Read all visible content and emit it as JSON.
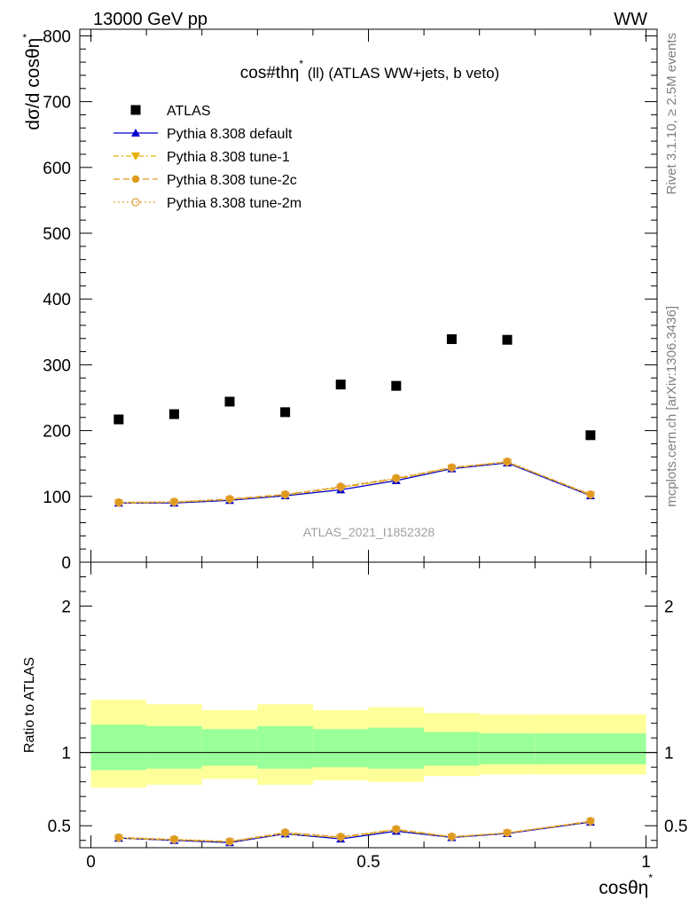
{
  "header": {
    "left": "13000 GeV pp",
    "right": "WW"
  },
  "side": {
    "rivet": "Rivet 3.1.10, ≥ 2.5M events",
    "mcplots": "mcplots.cern.ch [arXiv:1306.3436]"
  },
  "colors": {
    "atlas": "#000000",
    "default": "#0000cc",
    "tune1": "#e8b000",
    "tune2c": "#e09a1a",
    "tune2m": "#e0a040",
    "band_inner": "#99ff99",
    "band_outer": "#ffff99"
  },
  "chart_data": [
    {
      "type": "scatter",
      "title_main": "cos#thη",
      "title_sup": "*",
      "title_rest": " (ll) (ATLAS WW+jets, b veto)",
      "ylabel": "dσ/d cosθη",
      "ylabel_sup": "*",
      "watermark": "ATLAS_2021_I1852328",
      "ylim": [
        0,
        810
      ],
      "xlim": [
        -0.02,
        1.02
      ],
      "yticks": [
        0,
        100,
        200,
        300,
        400,
        500,
        600,
        700,
        800
      ],
      "ytick_labels": [
        "0",
        "100",
        "200",
        "300",
        "400",
        "500",
        "600",
        "700",
        "800"
      ],
      "x": [
        0.05,
        0.15,
        0.25,
        0.35,
        0.45,
        0.55,
        0.65,
        0.75,
        0.9
      ],
      "bin_edges": [
        0.0,
        0.1,
        0.2,
        0.3,
        0.4,
        0.5,
        0.6,
        0.7,
        0.8,
        1.0
      ],
      "legend": [
        {
          "key": "atlas",
          "label": "ATLAS"
        },
        {
          "key": "default",
          "label": "Pythia 8.308 default"
        },
        {
          "key": "tune1",
          "label": "Pythia 8.308 tune-1"
        },
        {
          "key": "tune2c",
          "label": "Pythia 8.308 tune-2c"
        },
        {
          "key": "tune2m",
          "label": "Pythia 8.308 tune-2m"
        }
      ],
      "series": [
        {
          "key": "atlas",
          "name": "ATLAS",
          "values": [
            217,
            225,
            244,
            228,
            270,
            268,
            339,
            338,
            193
          ]
        },
        {
          "key": "default",
          "name": "Pythia 8.308 default",
          "values": [
            90,
            90,
            94,
            101,
            110,
            124,
            142,
            151,
            101
          ]
        },
        {
          "key": "tune1",
          "name": "Pythia 8.308 tune-1",
          "values": [
            90,
            91,
            95,
            102,
            113,
            126,
            143,
            152,
            102
          ]
        },
        {
          "key": "tune2c",
          "name": "Pythia 8.308 tune-2c",
          "values": [
            91,
            91,
            96,
            103,
            114,
            127,
            144,
            152,
            103
          ]
        },
        {
          "key": "tune2m",
          "name": "Pythia 8.308 tune-2m",
          "values": [
            91,
            92,
            96,
            103,
            115,
            128,
            144,
            153,
            103
          ]
        }
      ]
    },
    {
      "type": "line",
      "ylabel": "Ratio to ATLAS",
      "xlabel": "cosθη",
      "xlabel_sup": "*",
      "ylim": [
        0.35,
        2.3
      ],
      "xlim": [
        -0.02,
        1.02
      ],
      "yticks": [
        0.5,
        1,
        2
      ],
      "ytick_labels": [
        "0.5",
        "1",
        "2"
      ],
      "xticks": [
        0,
        0.5,
        1
      ],
      "xtick_labels": [
        "0",
        "0.5",
        "1"
      ],
      "x": [
        0.05,
        0.15,
        0.25,
        0.35,
        0.45,
        0.55,
        0.65,
        0.75,
        0.9
      ],
      "bin_edges": [
        0.0,
        0.1,
        0.2,
        0.3,
        0.4,
        0.5,
        0.6,
        0.7,
        0.8,
        1.0
      ],
      "band_inner": [
        [
          0.88,
          1.19
        ],
        [
          0.89,
          1.18
        ],
        [
          0.91,
          1.16
        ],
        [
          0.89,
          1.18
        ],
        [
          0.9,
          1.16
        ],
        [
          0.89,
          1.17
        ],
        [
          0.91,
          1.14
        ],
        [
          0.92,
          1.13
        ],
        [
          0.92,
          1.13
        ]
      ],
      "band_outer": [
        [
          0.76,
          1.36
        ],
        [
          0.78,
          1.33
        ],
        [
          0.82,
          1.29
        ],
        [
          0.78,
          1.33
        ],
        [
          0.81,
          1.29
        ],
        [
          0.8,
          1.31
        ],
        [
          0.84,
          1.27
        ],
        [
          0.85,
          1.26
        ],
        [
          0.85,
          1.26
        ]
      ],
      "series": [
        {
          "key": "default",
          "name": "Pythia 8.308 default",
          "values": [
            0.415,
            0.4,
            0.385,
            0.445,
            0.41,
            0.463,
            0.42,
            0.447,
            0.525
          ]
        },
        {
          "key": "tune1",
          "name": "Pythia 8.308 tune-1",
          "values": [
            0.415,
            0.403,
            0.39,
            0.447,
            0.418,
            0.47,
            0.422,
            0.45,
            0.528
          ]
        },
        {
          "key": "tune2c",
          "name": "Pythia 8.308 tune-2c",
          "values": [
            0.42,
            0.405,
            0.392,
            0.452,
            0.422,
            0.474,
            0.425,
            0.45,
            0.53
          ]
        },
        {
          "key": "tune2m",
          "name": "Pythia 8.308 tune-2m",
          "values": [
            0.42,
            0.408,
            0.393,
            0.455,
            0.425,
            0.477,
            0.426,
            0.452,
            0.532
          ]
        }
      ]
    }
  ]
}
